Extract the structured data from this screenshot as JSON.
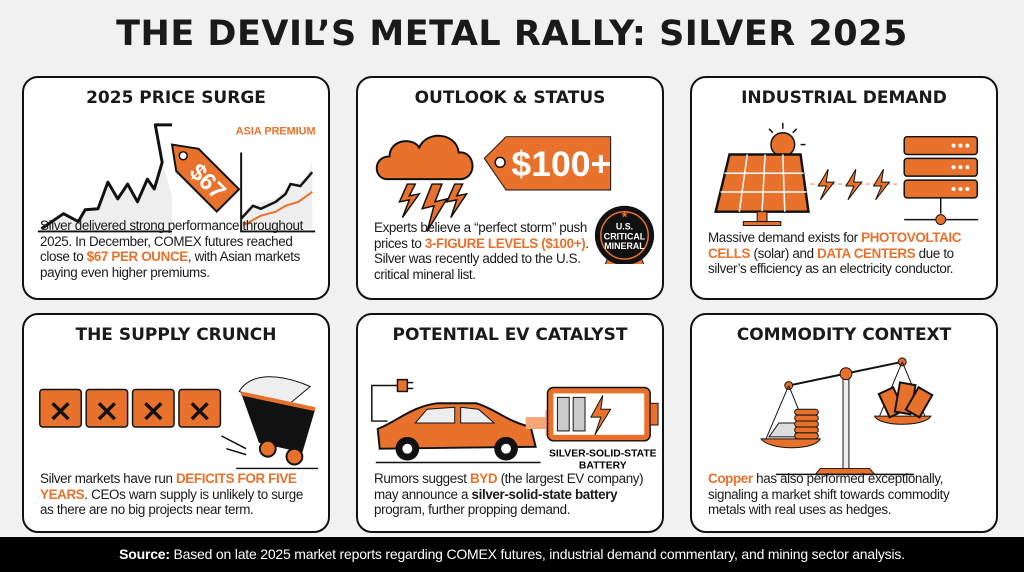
{
  "title": "THE DEVIL’S METAL RALLY: SILVER 2025",
  "colors": {
    "accent": "#e8722c",
    "dark": "#111111",
    "background": "#f1f1f1"
  },
  "cards": [
    {
      "title": "2025 PRICE SURGE",
      "tag": "$67",
      "chart_label": "ASIA PREMIUM",
      "text": [
        "Silver delivered strong performance throughout 2025. In December, COMEX futures reached close to ",
        "$67 PER OUNCE",
        ", with Asian markets paying even higher premiums."
      ]
    },
    {
      "title": "OUTLOOK & STATUS",
      "tag": "$100+",
      "badge_top": "U.S.",
      "badge_mid": "CRITICAL",
      "badge_bot": "MINERAL",
      "text": [
        "Experts believe a “perfect storm” push prices to ",
        "3-FIGURE LEVELS ($100+)",
        ". Silver was recently added to the U.S. critical mineral list."
      ]
    },
    {
      "title": "INDUSTRIAL DEMAND",
      "text": [
        "Massive demand exists for ",
        "PHOTOVOLTAIC CELLS",
        " (solar) and ",
        "DATA CENTERS",
        " due to silver’s efficiency as an electricity conductor."
      ]
    },
    {
      "title": "THE SUPPLY CRUNCH",
      "text": [
        "Silver markets have run ",
        "DEFICITS FOR FIVE YEARS",
        ". CEOs warn supply is unlikely to surge as there are no big projects near term."
      ]
    },
    {
      "title": "POTENTIAL EV CATALYST",
      "battery_label_1": "SILVER-SOLID-STATE",
      "battery_label_2": "BATTERY",
      "text": [
        "Rumors suggest ",
        "BYD",
        " (the largest EV company) may announce a ",
        "silver-solid-state battery",
        " program, further propping demand."
      ]
    },
    {
      "title": "COMMODITY CONTEXT",
      "text": [
        "Copper",
        " has also performed exceptionally, signaling a market shift towards commodity metals with real uses as hedges."
      ]
    }
  ],
  "footer": {
    "label": "Source:",
    "text": " Based on late 2025 market reports regarding COMEX futures, industrial demand commentary, and mining sector analysis."
  }
}
